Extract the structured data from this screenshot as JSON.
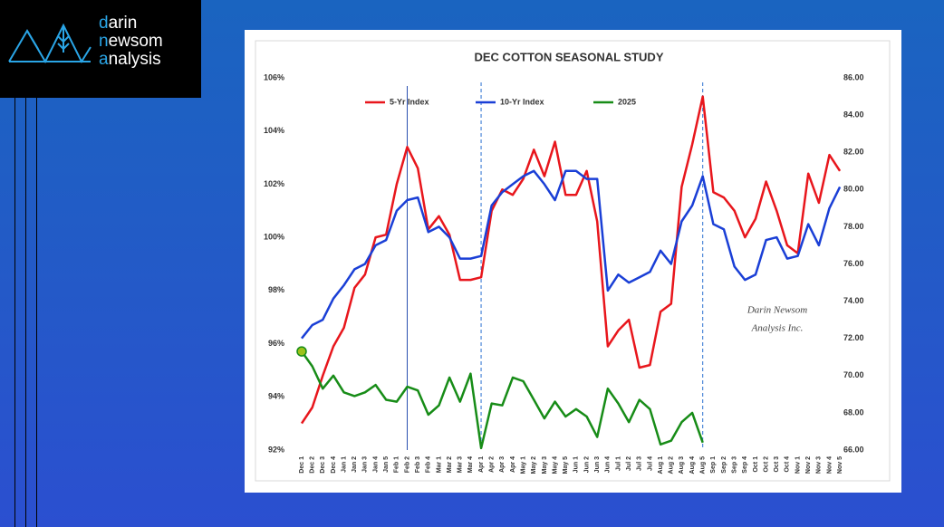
{
  "logo": {
    "lines": [
      "darin",
      "newsom",
      "analysis"
    ]
  },
  "chart_data": {
    "type": "line",
    "title": "DEC COTTON SEASONAL STUDY",
    "categories": [
      "Dec 1",
      "Dec 2",
      "Dec 3",
      "Dec 4",
      "Jan 1",
      "Jan 2",
      "Jan 3",
      "Jan 4",
      "Jan 5",
      "Feb 1",
      "Feb 2",
      "Feb 3",
      "Feb 4",
      "Mar 1",
      "Mar 2",
      "Mar 3",
      "Mar 4",
      "Apr 1",
      "Apr 2",
      "Apr 3",
      "Apr 4",
      "May 1",
      "May 2",
      "May 3",
      "May 4",
      "May 5",
      "Jun 1",
      "Jun 2",
      "Jun 3",
      "Jun 4",
      "Jul 1",
      "Jul 2",
      "Jul 3",
      "Jul 4",
      "Aug 1",
      "Aug 2",
      "Aug 3",
      "Aug 4",
      "Aug 5",
      "Sep 1",
      "Sep 2",
      "Sep 3",
      "Sep 4",
      "Oct 1",
      "Oct 2",
      "Oct 3",
      "Oct 4",
      "Nov 1",
      "Nov 2",
      "Nov 3",
      "Nov 4",
      "Nov 5"
    ],
    "series": [
      {
        "name": "5-Yr Index",
        "color": "#e8161c",
        "axis": "y",
        "values": [
          93.0,
          93.6,
          94.8,
          95.9,
          96.6,
          98.1,
          98.6,
          100.0,
          100.1,
          102.0,
          103.4,
          102.6,
          100.3,
          100.8,
          100.1,
          98.4,
          98.4,
          98.5,
          101.0,
          101.8,
          101.6,
          102.2,
          103.3,
          102.3,
          103.6,
          101.6,
          101.6,
          102.5,
          100.6,
          95.9,
          96.5,
          96.9,
          95.1,
          95.2,
          97.2,
          97.5,
          101.9,
          103.5,
          105.3,
          101.7,
          101.5,
          101.0,
          100.0,
          100.7,
          102.1,
          101.0,
          99.7,
          99.4,
          102.4,
          101.3,
          103.1,
          102.5
        ]
      },
      {
        "name": "10-Yr Index",
        "color": "#1a3fd6",
        "axis": "y",
        "values": [
          96.2,
          96.7,
          96.9,
          97.7,
          98.2,
          98.8,
          99.0,
          99.7,
          99.9,
          101.0,
          101.4,
          101.5,
          100.2,
          100.4,
          100.0,
          99.2,
          99.2,
          99.3,
          101.2,
          101.7,
          102.0,
          102.3,
          102.5,
          102.0,
          101.4,
          102.5,
          102.5,
          102.2,
          102.2,
          98.0,
          98.6,
          98.3,
          98.5,
          98.7,
          99.5,
          99.0,
          100.6,
          101.2,
          102.3,
          100.5,
          100.3,
          98.9,
          98.4,
          98.6,
          99.9,
          100.0,
          99.2,
          99.3,
          100.5,
          99.7,
          101.1,
          101.9
        ]
      },
      {
        "name": "2025",
        "color": "#178c17",
        "axis": "y2",
        "start_marker": true,
        "start_marker_color": "#9cc21a",
        "values": [
          71.3,
          70.5,
          69.3,
          70.0,
          69.1,
          68.9,
          69.1,
          69.5,
          68.7,
          68.6,
          69.4,
          69.2,
          67.9,
          68.4,
          69.9,
          68.6,
          70.1,
          66.1,
          68.5,
          68.4,
          69.9,
          69.7,
          68.7,
          67.7,
          68.6,
          67.8,
          68.2,
          67.8,
          66.7,
          69.3,
          68.5,
          67.5,
          68.7,
          68.2,
          66.3,
          66.5,
          67.5,
          68.0,
          66.4,
          null,
          null,
          null,
          null,
          null,
          null,
          null,
          null,
          null,
          null,
          null,
          null,
          null
        ]
      }
    ],
    "ylim": [
      92,
      106
    ],
    "yticks": [
      {
        "value": 92,
        "label": "92%"
      },
      {
        "value": 94,
        "label": "94%"
      },
      {
        "value": 96,
        "label": "96%"
      },
      {
        "value": 98,
        "label": "98%"
      },
      {
        "value": 100,
        "label": "100%"
      },
      {
        "value": 102,
        "label": "102%"
      },
      {
        "value": 104,
        "label": "104%"
      },
      {
        "value": 106,
        "label": "106%"
      }
    ],
    "y2lim": [
      66,
      86
    ],
    "y2ticks": [
      {
        "value": 66,
        "label": "66.00"
      },
      {
        "value": 68,
        "label": "68.00"
      },
      {
        "value": 70,
        "label": "70.00"
      },
      {
        "value": 72,
        "label": "72.00"
      },
      {
        "value": 74,
        "label": "74.00"
      },
      {
        "value": 76,
        "label": "76.00"
      },
      {
        "value": 78,
        "label": "78.00"
      },
      {
        "value": 80,
        "label": "80.00"
      },
      {
        "value": 82,
        "label": "82.00"
      },
      {
        "value": 84,
        "label": "84.00"
      },
      {
        "value": 86,
        "label": "86.00"
      }
    ],
    "grid": false,
    "legend": "top",
    "reference_lines": [
      {
        "at": "Feb 2",
        "style": "solid",
        "color": "#2a4fb0"
      },
      {
        "at": "Apr 1",
        "style": "dashed",
        "color": "#2a6fd0"
      },
      {
        "at": "Aug 5",
        "style": "dashed",
        "color": "#2a6fd0"
      }
    ],
    "annotation": [
      "Darin Newsom",
      "Analysis Inc."
    ]
  }
}
